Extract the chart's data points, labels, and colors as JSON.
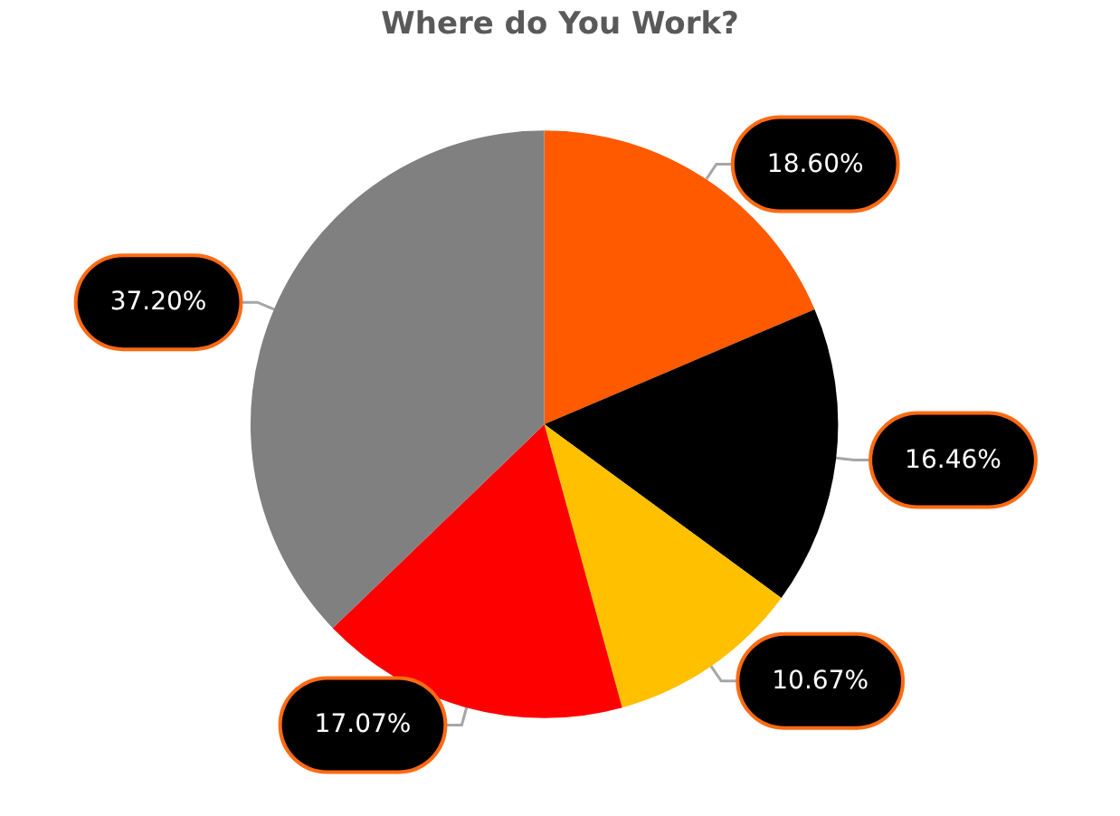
{
  "chart_data": {
    "type": "pie",
    "title": "Where do You Work?",
    "categories": [
      null,
      null,
      null,
      null,
      null
    ],
    "values": [
      18.6,
      16.46,
      10.67,
      17.07,
      37.2
    ],
    "colors": [
      "#ff5a00",
      "#000000",
      "#ffc000",
      "#ff0000",
      "#808080"
    ],
    "value_labels": [
      "18.60%",
      "16.46%",
      "10.67%",
      "17.07%",
      "37.20%"
    ]
  }
}
